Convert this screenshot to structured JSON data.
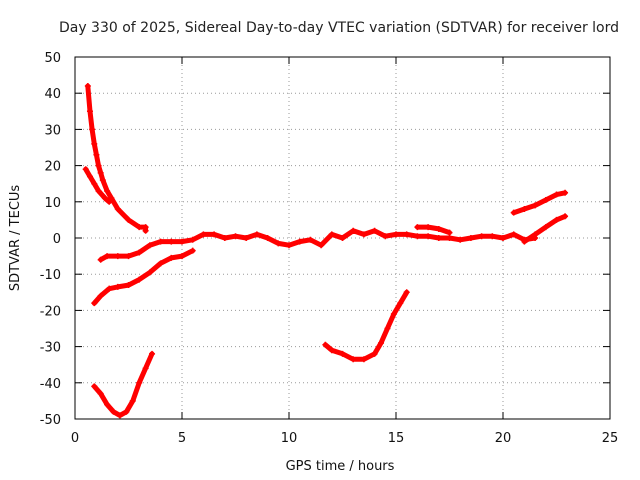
{
  "chart_data": {
    "type": "scatter",
    "title": "Day 330 of 2025, Sidereal Day-to-day VTEC variation (SDTVAR) for receiver lord",
    "xlabel": "GPS time / hours",
    "ylabel": "SDTVAR / TECUs",
    "xlim": [
      0,
      25
    ],
    "ylim": [
      -50,
      50
    ],
    "xticks": [
      0,
      5,
      10,
      15,
      20,
      25
    ],
    "yticks": [
      -50,
      -40,
      -30,
      -20,
      -10,
      0,
      10,
      20,
      30,
      40,
      50
    ],
    "grid": true,
    "marker": "+",
    "color": "#ff0000",
    "series": [
      {
        "name": "trace-1",
        "x": [
          0.6,
          0.7,
          0.8,
          0.9,
          1.0,
          1.1,
          1.2,
          1.3,
          1.5,
          1.7,
          2.0,
          2.5,
          3.0,
          3.3,
          3.3
        ],
        "y": [
          42,
          35,
          30,
          26,
          23,
          20,
          18,
          16,
          13,
          11,
          8,
          5,
          3,
          3,
          2
        ]
      },
      {
        "name": "trace-2",
        "x": [
          0.5,
          0.7,
          0.9,
          1.1,
          1.4,
          1.6
        ],
        "y": [
          19,
          17,
          15,
          13,
          11,
          10
        ]
      },
      {
        "name": "trace-3",
        "x": [
          1.2,
          1.5,
          2.0,
          2.5,
          3.0,
          3.5,
          4.0,
          4.5,
          5.0,
          5.5,
          6.0,
          6.5,
          7.0,
          7.5,
          8.0,
          8.5,
          9.0,
          9.5,
          10.0,
          10.5,
          11.0,
          11.5,
          12.0,
          12.5,
          13.0,
          13.5,
          14.0,
          14.5,
          15.0,
          15.5,
          16.0,
          16.5,
          17.0,
          17.5,
          18.0,
          18.5,
          19.0,
          19.5,
          20.0,
          20.5,
          21.0,
          21.5
        ],
        "y": [
          -6,
          -5,
          -5,
          -5,
          -4,
          -2,
          -1,
          -1,
          -1,
          -0.5,
          1,
          1,
          0,
          0.5,
          0,
          1,
          0,
          -1.5,
          -2,
          -1,
          -0.5,
          -2,
          1,
          0,
          2,
          1,
          2,
          0.5,
          1,
          1,
          0.5,
          0.5,
          0,
          0,
          -0.5,
          0,
          0.5,
          0.5,
          0,
          1,
          -0.5,
          0
        ]
      },
      {
        "name": "trace-4",
        "x": [
          0.9,
          1.2,
          1.6,
          2.0,
          2.5,
          3.0,
          3.5,
          4.0,
          4.5,
          5.0,
          5.5
        ],
        "y": [
          -18,
          -16,
          -14,
          -13.5,
          -13,
          -11.5,
          -9.5,
          -7,
          -5.5,
          -5,
          -3.5
        ]
      },
      {
        "name": "trace-5",
        "x": [
          0.9,
          1.2,
          1.5,
          1.8,
          2.1,
          2.4,
          2.7,
          3.0,
          3.3,
          3.6
        ],
        "y": [
          -41,
          -43,
          -46,
          -48,
          -49,
          -48,
          -45,
          -40,
          -36,
          -32
        ]
      },
      {
        "name": "trace-6",
        "x": [
          11.7,
          12.0,
          12.5,
          13.0,
          13.5,
          14.0,
          14.3,
          14.6,
          14.9,
          15.2,
          15.5
        ],
        "y": [
          -29.5,
          -31,
          -32,
          -33.5,
          -33.5,
          -32,
          -29,
          -25,
          -21,
          -18,
          -15
        ]
      },
      {
        "name": "trace-7",
        "x": [
          16.0,
          16.5,
          17.0,
          17.5
        ],
        "y": [
          3,
          3,
          2.5,
          1.5
        ]
      },
      {
        "name": "trace-8",
        "x": [
          20.5,
          21.0,
          21.5,
          22.0,
          22.5,
          22.9
        ],
        "y": [
          7,
          8,
          9,
          10.5,
          12,
          12.5
        ]
      },
      {
        "name": "trace-9",
        "x": [
          21.0,
          21.5,
          22.0,
          22.5,
          22.9
        ],
        "y": [
          -1,
          1,
          3,
          5,
          6
        ]
      }
    ]
  }
}
